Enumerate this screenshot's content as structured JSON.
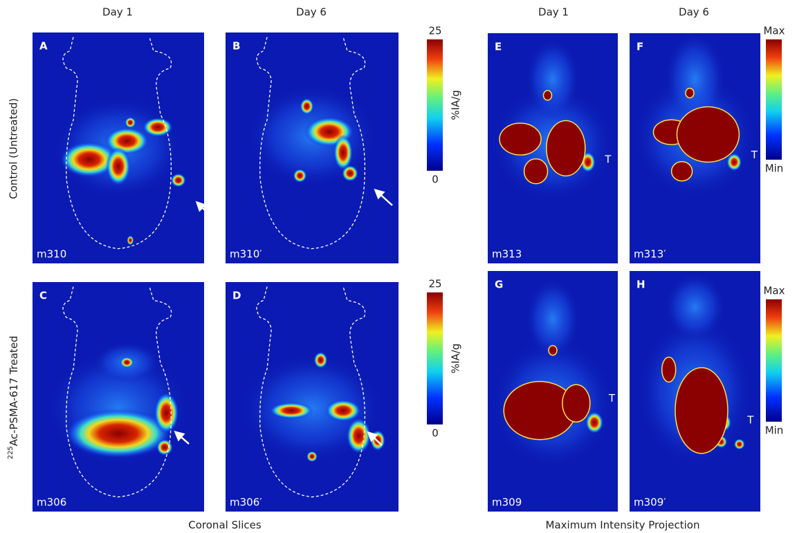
{
  "column_headers": {
    "coronal_day1": "Day 1",
    "coronal_day6": "Day 6",
    "mip_day1": "Day 1",
    "mip_day6": "Day 6"
  },
  "row_labels": {
    "control": "Control (Untreated)",
    "treated": {
      "superscript": "225",
      "text": "Ac-PSMA-617 Treated"
    }
  },
  "panels": [
    {
      "letter": "A",
      "id": "m310"
    },
    {
      "letter": "B",
      "id": "m310′"
    },
    {
      "letter": "C",
      "id": "m306"
    },
    {
      "letter": "D",
      "id": "m306′"
    },
    {
      "letter": "E",
      "id": "m313",
      "tumor_label": "T"
    },
    {
      "letter": "F",
      "id": "m313′",
      "tumor_label": "T"
    },
    {
      "letter": "G",
      "id": "m309",
      "tumor_label": "T"
    },
    {
      "letter": "H",
      "id": "m309′",
      "tumor_label": "T"
    }
  ],
  "colorbars": [
    {
      "max": 25,
      "min": 0,
      "unit": "%IA/g"
    },
    {
      "max": 25,
      "min": 0,
      "unit": "%IA/g"
    },
    {
      "max": "Max",
      "min": "Min"
    },
    {
      "max": "Max",
      "min": "Min"
    }
  ],
  "footers": {
    "coronal": "Coronal Slices",
    "mip": "Maximum Intensity Projection"
  }
}
